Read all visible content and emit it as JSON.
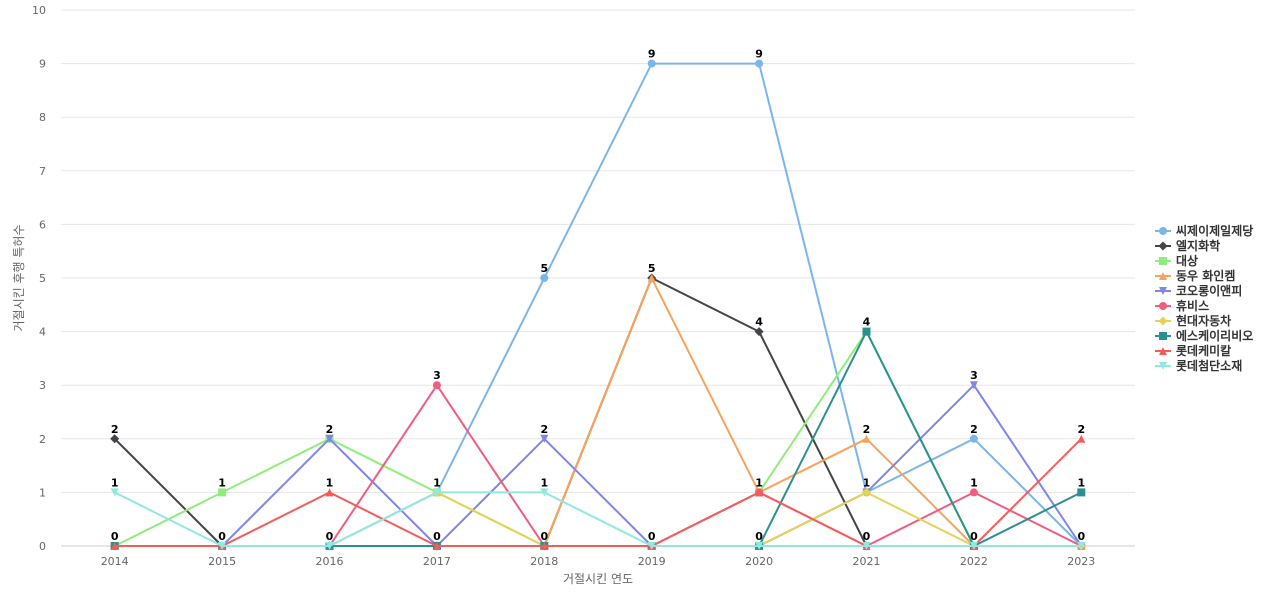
{
  "chart_data": {
    "type": "line",
    "xlabel": "거절시킨 연도",
    "ylabel": "거절시킨 후행 특허수",
    "categories": [
      "2014",
      "2015",
      "2016",
      "2017",
      "2018",
      "2019",
      "2020",
      "2021",
      "2022",
      "2023"
    ],
    "ylim": [
      0,
      10
    ],
    "yticks": [
      0,
      1,
      2,
      3,
      4,
      5,
      6,
      7,
      8,
      9,
      10
    ],
    "grid": true,
    "legend_position": "right",
    "series": [
      {
        "name": "씨제이제일제당",
        "color": "#7cb5ec",
        "marker": "circle",
        "values": [
          0,
          0,
          0,
          1,
          5,
          9,
          9,
          1,
          2,
          0
        ]
      },
      {
        "name": "엘지화학",
        "color": "#434348",
        "marker": "diamond",
        "values": [
          2,
          0,
          0,
          0,
          0,
          5,
          4,
          0,
          0,
          0
        ]
      },
      {
        "name": "대상",
        "color": "#90ed7d",
        "marker": "square",
        "values": [
          0,
          1,
          2,
          1,
          0,
          0,
          1,
          4,
          0,
          0
        ]
      },
      {
        "name": "동우 화인켐",
        "color": "#f7a35c",
        "marker": "triangle",
        "values": [
          0,
          0,
          0,
          0,
          0,
          5,
          1,
          2,
          0,
          0
        ]
      },
      {
        "name": "코오롱이앤피",
        "color": "#8085e9",
        "marker": "triangle-down",
        "values": [
          0,
          0,
          2,
          0,
          2,
          0,
          0,
          1,
          3,
          0
        ]
      },
      {
        "name": "휴비스",
        "color": "#f15c80",
        "marker": "circle",
        "values": [
          0,
          0,
          0,
          3,
          0,
          0,
          1,
          0,
          1,
          0
        ]
      },
      {
        "name": "현대자동차",
        "color": "#e4d354",
        "marker": "diamond",
        "values": [
          0,
          0,
          0,
          1,
          0,
          0,
          0,
          1,
          0,
          0
        ]
      },
      {
        "name": "에스케이리비오",
        "color": "#2b908f",
        "marker": "square",
        "values": [
          0,
          0,
          0,
          0,
          0,
          0,
          0,
          4,
          0,
          1
        ]
      },
      {
        "name": "롯데케미칼",
        "color": "#f45b5b",
        "marker": "triangle",
        "values": [
          0,
          0,
          1,
          0,
          0,
          0,
          1,
          0,
          0,
          2
        ]
      },
      {
        "name": "롯데첨단소재",
        "color": "#91e8e1",
        "marker": "triangle-down",
        "values": [
          1,
          0,
          0,
          1,
          1,
          0,
          0,
          0,
          0,
          0
        ]
      }
    ],
    "data_labels": [
      {
        "cat": 0,
        "value": 2
      },
      {
        "cat": 0,
        "value": 1
      },
      {
        "cat": 0,
        "value": 0
      },
      {
        "cat": 1,
        "value": 1
      },
      {
        "cat": 1,
        "value": 0
      },
      {
        "cat": 2,
        "value": 2
      },
      {
        "cat": 2,
        "value": 1
      },
      {
        "cat": 2,
        "value": 0
      },
      {
        "cat": 3,
        "value": 3
      },
      {
        "cat": 3,
        "value": 1
      },
      {
        "cat": 3,
        "value": 0
      },
      {
        "cat": 4,
        "value": 5
      },
      {
        "cat": 4,
        "value": 2
      },
      {
        "cat": 4,
        "value": 1
      },
      {
        "cat": 4,
        "value": 0
      },
      {
        "cat": 5,
        "value": 9
      },
      {
        "cat": 5,
        "value": 5
      },
      {
        "cat": 5,
        "value": 0
      },
      {
        "cat": 6,
        "value": 9
      },
      {
        "cat": 6,
        "value": 4
      },
      {
        "cat": 6,
        "value": 1
      },
      {
        "cat": 6,
        "value": 0
      },
      {
        "cat": 7,
        "value": 4
      },
      {
        "cat": 7,
        "value": 2
      },
      {
        "cat": 7,
        "value": 1
      },
      {
        "cat": 7,
        "value": 0
      },
      {
        "cat": 8,
        "value": 3
      },
      {
        "cat": 8,
        "value": 2
      },
      {
        "cat": 8,
        "value": 1
      },
      {
        "cat": 8,
        "value": 0
      },
      {
        "cat": 9,
        "value": 2
      },
      {
        "cat": 9,
        "value": 1
      },
      {
        "cat": 9,
        "value": 0
      }
    ]
  }
}
